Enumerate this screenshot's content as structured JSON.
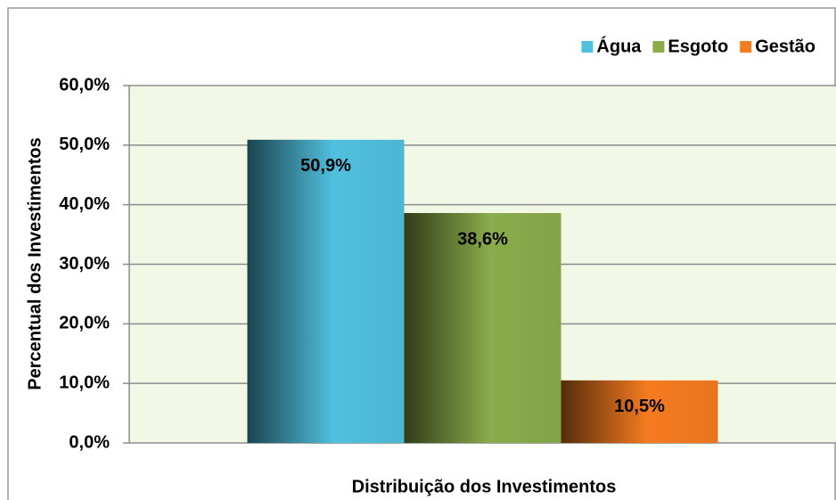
{
  "chart_data": {
    "type": "bar",
    "xlabel": "Distribuição dos Investimentos",
    "ylabel": "Percentual dos Investimentos",
    "series": [
      {
        "name": "Água",
        "color": "#4fc0de",
        "values": [
          50.9
        ],
        "value_labels": [
          "50,9%"
        ]
      },
      {
        "name": "Esgoto",
        "color": "#8aac4a",
        "values": [
          38.6
        ],
        "value_labels": [
          "38,6%"
        ]
      },
      {
        "name": "Gestão",
        "color": "#f47b20",
        "values": [
          10.5
        ],
        "value_labels": [
          "10,5%"
        ]
      }
    ],
    "ylim": [
      0,
      60
    ],
    "yticks": [
      {
        "value": 0,
        "label": "0,0%"
      },
      {
        "value": 10,
        "label": "10,0%"
      },
      {
        "value": 20,
        "label": "20,0%"
      },
      {
        "value": 30,
        "label": "30,0%"
      },
      {
        "value": 40,
        "label": "40,0%"
      },
      {
        "value": 50,
        "label": "50,0%"
      },
      {
        "value": 60,
        "label": "60,0%"
      }
    ],
    "grid": true,
    "legend": "top-right"
  }
}
